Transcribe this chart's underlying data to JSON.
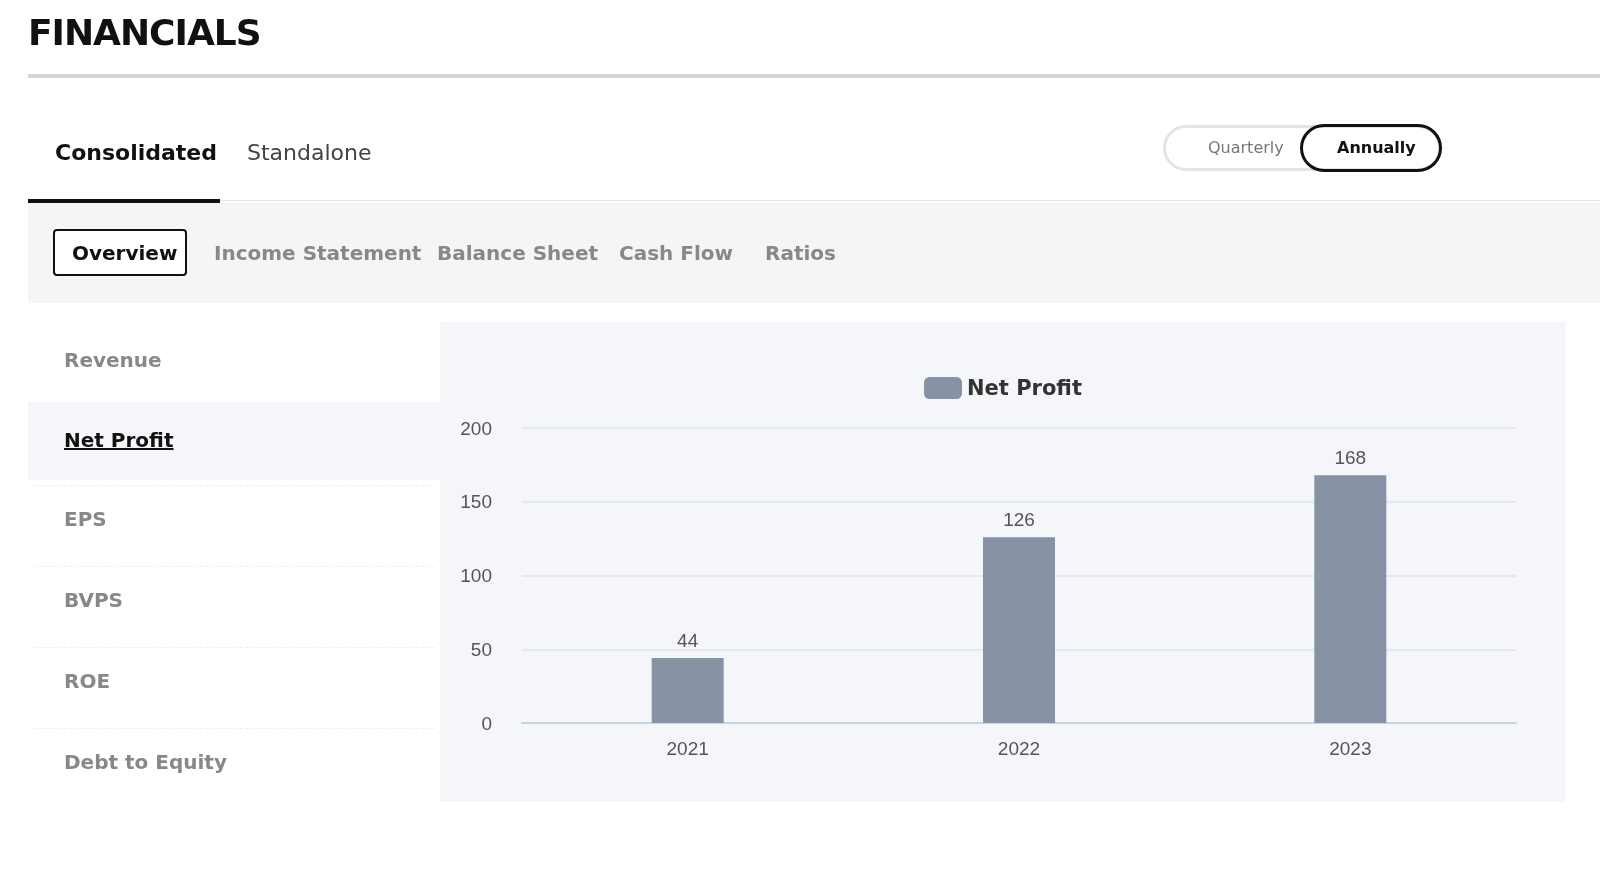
{
  "chart_data": {
    "type": "bar",
    "title": "FINANCIALS",
    "annotations": [
      "Consolidated",
      "Standalone",
      "Quarterly",
      "Annually",
      "Overview",
      "Income Statement",
      "Balance Sheet",
      "Cash Flow",
      "Ratios",
      "Revenue",
      "Net Profit",
      "EPS",
      "BVPS",
      "ROE",
      "Debt to Equity"
    ],
    "categories": [
      "2021",
      "2022",
      "2023"
    ],
    "series": [
      {
        "name": "Net Profit",
        "color": "#8793a5",
        "values": [
          44,
          126,
          168
        ]
      }
    ],
    "ylim": [
      0,
      200
    ],
    "yticks": [
      0,
      50,
      100,
      150,
      200
    ],
    "grid": "y",
    "legend": "top",
    "data_labels": true
  }
}
